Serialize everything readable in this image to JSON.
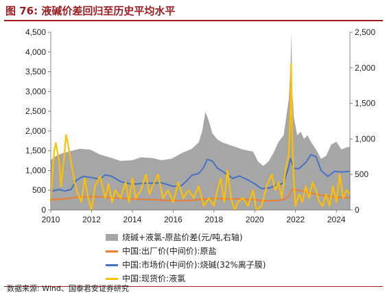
{
  "figure": {
    "title": "图 76:  液碱价差回归至历史平均水平",
    "source": "数据来源:  Wind、国泰君安证券研究"
  },
  "colors": {
    "spread_area": "#a6a6a6",
    "factory_price": "#ed7d31",
    "market_price": "#4472c4",
    "spot_price": "#ffc000",
    "title_red": "#9e1b1f"
  },
  "chart_data": {
    "type": "line",
    "x_type": "date",
    "xlim": [
      "2010-01",
      "2024-09"
    ],
    "x_ticks": [
      "2010",
      "2012",
      "2014",
      "2016",
      "2018",
      "2020",
      "2022",
      "2024"
    ],
    "y_left": {
      "min": 0,
      "max": 4500,
      "ticks": [
        "0",
        "500",
        "1,000",
        "1,500",
        "2,000",
        "2,500",
        "3,000",
        "3,500",
        "4,000",
        "4,500"
      ]
    },
    "y_right": {
      "min": 0,
      "max": 2500,
      "ticks": [
        "0",
        "500",
        "1,000",
        "1,500",
        "2,000",
        "2,500"
      ]
    },
    "grid": false,
    "legend_position": "bottom",
    "series": [
      {
        "name": "烧碱+液氯-原盐价差(元/吨,右轴)",
        "kind": "area",
        "axis": "right",
        "points": [
          [
            "2010-01",
            700
          ],
          [
            "2010-04",
            760
          ],
          [
            "2010-08",
            800
          ],
          [
            "2011-01",
            830
          ],
          [
            "2011-06",
            860
          ],
          [
            "2011-12",
            850
          ],
          [
            "2012-06",
            780
          ],
          [
            "2013-01",
            730
          ],
          [
            "2013-06",
            690
          ],
          [
            "2014-01",
            700
          ],
          [
            "2014-06",
            740
          ],
          [
            "2015-01",
            730
          ],
          [
            "2015-06",
            700
          ],
          [
            "2015-12",
            720
          ],
          [
            "2016-06",
            800
          ],
          [
            "2016-12",
            860
          ],
          [
            "2017-04",
            950
          ],
          [
            "2017-06",
            1100
          ],
          [
            "2017-08",
            1380
          ],
          [
            "2017-10",
            1250
          ],
          [
            "2017-12",
            1080
          ],
          [
            "2018-03",
            990
          ],
          [
            "2018-06",
            950
          ],
          [
            "2018-12",
            900
          ],
          [
            "2019-06",
            850
          ],
          [
            "2019-12",
            820
          ],
          [
            "2020-03",
            680
          ],
          [
            "2020-06",
            620
          ],
          [
            "2020-09",
            680
          ],
          [
            "2020-12",
            800
          ],
          [
            "2021-03",
            960
          ],
          [
            "2021-06",
            1050
          ],
          [
            "2021-09",
            1550
          ],
          [
            "2021-10",
            2000
          ],
          [
            "2021-10-20",
            2490
          ],
          [
            "2021-11",
            1700
          ],
          [
            "2021-12",
            1300
          ],
          [
            "2022-02",
            1050
          ],
          [
            "2022-04",
            1100
          ],
          [
            "2022-06",
            1000
          ],
          [
            "2022-08",
            1050
          ],
          [
            "2022-10",
            960
          ],
          [
            "2023-01",
            850
          ],
          [
            "2023-04",
            720
          ],
          [
            "2023-07",
            760
          ],
          [
            "2023-10",
            920
          ],
          [
            "2024-01",
            960
          ],
          [
            "2024-04",
            850
          ],
          [
            "2024-07",
            880
          ],
          [
            "2024-09",
            890
          ]
        ]
      },
      {
        "name": "中国:出厂价(中间价):原盐",
        "axis": "left",
        "points": [
          [
            "2010-01",
            260
          ],
          [
            "2010-06",
            270
          ],
          [
            "2011-01",
            300
          ],
          [
            "2011-06",
            330
          ],
          [
            "2012-01",
            340
          ],
          [
            "2012-06",
            330
          ],
          [
            "2013-01",
            310
          ],
          [
            "2014-01",
            280
          ],
          [
            "2015-01",
            260
          ],
          [
            "2016-01",
            240
          ],
          [
            "2016-06",
            235
          ],
          [
            "2017-01",
            250
          ],
          [
            "2017-06",
            270
          ],
          [
            "2018-01",
            290
          ],
          [
            "2019-01",
            280
          ],
          [
            "2020-01",
            260
          ],
          [
            "2020-06",
            230
          ],
          [
            "2021-01",
            240
          ],
          [
            "2021-06",
            260
          ],
          [
            "2021-09",
            350
          ],
          [
            "2021-11",
            520
          ],
          [
            "2022-03",
            500
          ],
          [
            "2022-09",
            440
          ],
          [
            "2023-03",
            380
          ],
          [
            "2023-09",
            340
          ],
          [
            "2024-03",
            320
          ],
          [
            "2024-09",
            310
          ]
        ]
      },
      {
        "name": "中国:市场价(中间价):烧碱(32%离子膜)",
        "axis": "left",
        "points": [
          [
            "2010-01",
            470
          ],
          [
            "2010-06",
            520
          ],
          [
            "2010-09",
            480
          ],
          [
            "2011-01",
            520
          ],
          [
            "2011-04",
            750
          ],
          [
            "2011-08",
            850
          ],
          [
            "2012-01",
            820
          ],
          [
            "2012-06",
            780
          ],
          [
            "2012-09",
            890
          ],
          [
            "2013-01",
            850
          ],
          [
            "2013-06",
            720
          ],
          [
            "2014-01",
            650
          ],
          [
            "2014-06",
            670
          ],
          [
            "2015-01",
            680
          ],
          [
            "2015-06",
            690
          ],
          [
            "2016-01",
            600
          ],
          [
            "2016-06",
            620
          ],
          [
            "2016-09",
            740
          ],
          [
            "2016-12",
            880
          ],
          [
            "2017-04",
            920
          ],
          [
            "2017-07",
            1080
          ],
          [
            "2017-09",
            1280
          ],
          [
            "2017-12",
            1240
          ],
          [
            "2018-03",
            1060
          ],
          [
            "2018-06",
            980
          ],
          [
            "2018-12",
            800
          ],
          [
            "2019-04",
            860
          ],
          [
            "2019-09",
            760
          ],
          [
            "2020-01",
            660
          ],
          [
            "2020-05",
            540
          ],
          [
            "2020-10",
            560
          ],
          [
            "2021-01",
            620
          ],
          [
            "2021-06",
            680
          ],
          [
            "2021-09",
            1100
          ],
          [
            "2021-10",
            1300
          ],
          [
            "2021-12",
            1050
          ],
          [
            "2022-03",
            1050
          ],
          [
            "2022-07",
            1200
          ],
          [
            "2022-10",
            1400
          ],
          [
            "2023-01",
            1350
          ],
          [
            "2023-04",
            1000
          ],
          [
            "2023-08",
            850
          ],
          [
            "2023-12",
            980
          ],
          [
            "2024-04",
            960
          ],
          [
            "2024-09",
            980
          ]
        ]
      },
      {
        "name": "中国:现货价:液氯",
        "axis": "left",
        "points": [
          [
            "2010-01",
            200
          ],
          [
            "2010-02",
            900
          ],
          [
            "2010-03",
            1500
          ],
          [
            "2010-04",
            1700
          ],
          [
            "2010-06",
            1200
          ],
          [
            "2010-07",
            600
          ],
          [
            "2010-09",
            1400
          ],
          [
            "2010-10",
            1900
          ],
          [
            "2010-11",
            1700
          ],
          [
            "2011-01",
            1200
          ],
          [
            "2011-03",
            700
          ],
          [
            "2011-05",
            400
          ],
          [
            "2011-07",
            200
          ],
          [
            "2011-09",
            800
          ],
          [
            "2011-11",
            300
          ],
          [
            "2012-01",
            0
          ],
          [
            "2012-03",
            600
          ],
          [
            "2012-06",
            850
          ],
          [
            "2012-09",
            300
          ],
          [
            "2012-11",
            650
          ],
          [
            "2013-01",
            200
          ],
          [
            "2013-03",
            500
          ],
          [
            "2013-06",
            300
          ],
          [
            "2013-09",
            700
          ],
          [
            "2013-11",
            200
          ],
          [
            "2014-01",
            800
          ],
          [
            "2014-03",
            300
          ],
          [
            "2014-06",
            500
          ],
          [
            "2014-09",
            900
          ],
          [
            "2014-11",
            400
          ],
          [
            "2015-01",
            600
          ],
          [
            "2015-04",
            900
          ],
          [
            "2015-07",
            300
          ],
          [
            "2015-10",
            500
          ],
          [
            "2016-01",
            200
          ],
          [
            "2016-04",
            700
          ],
          [
            "2016-07",
            300
          ],
          [
            "2016-10",
            500
          ],
          [
            "2017-01",
            300
          ],
          [
            "2017-04",
            600
          ],
          [
            "2017-07",
            100
          ],
          [
            "2017-10",
            300
          ],
          [
            "2018-01",
            100
          ],
          [
            "2018-03",
            500
          ],
          [
            "2018-05",
            800
          ],
          [
            "2018-07",
            200
          ],
          [
            "2018-09",
            1000
          ],
          [
            "2018-11",
            300
          ],
          [
            "2019-01",
            0
          ],
          [
            "2019-03",
            200
          ],
          [
            "2019-06",
            300
          ],
          [
            "2019-09",
            100
          ],
          [
            "2019-12",
            500
          ],
          [
            "2020-02",
            0
          ],
          [
            "2020-05",
            100
          ],
          [
            "2020-08",
            600
          ],
          [
            "2020-11",
            900
          ],
          [
            "2021-01",
            500
          ],
          [
            "2021-03",
            700
          ],
          [
            "2021-05",
            300
          ],
          [
            "2021-07",
            1000
          ],
          [
            "2021-09",
            1400
          ],
          [
            "2021-10",
            2500
          ],
          [
            "2021-10-15",
            3700
          ],
          [
            "2021-11",
            1900
          ],
          [
            "2021-12",
            700
          ],
          [
            "2022-01",
            100
          ],
          [
            "2022-03",
            400
          ],
          [
            "2022-05",
            200
          ],
          [
            "2022-07",
            600
          ],
          [
            "2022-09",
            300
          ],
          [
            "2022-11",
            700
          ],
          [
            "2023-01",
            500
          ],
          [
            "2023-03",
            200
          ],
          [
            "2023-05",
            100
          ],
          [
            "2023-07",
            400
          ],
          [
            "2023-09",
            100
          ],
          [
            "2023-11",
            600
          ],
          [
            "2024-01",
            200
          ],
          [
            "2024-03",
            900
          ],
          [
            "2024-05",
            300
          ],
          [
            "2024-07",
            500
          ],
          [
            "2024-09",
            400
          ]
        ]
      }
    ]
  }
}
